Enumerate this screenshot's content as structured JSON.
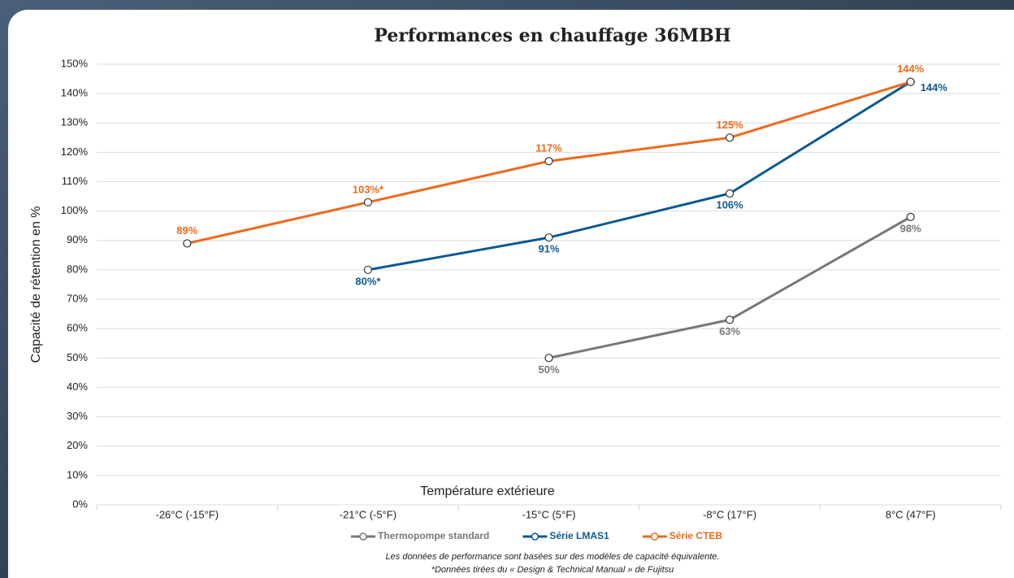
{
  "chart_data": {
    "type": "line",
    "title": "Performances en chauffage 36MBH",
    "x_label": "Température extérieure",
    "y_label": "Capacité de rétention en %",
    "categories": [
      "-26°C (-15°F)",
      "-21°C (-5°F)",
      "-15°C (5°F)",
      "-8°C (17°F)",
      "8°C (47°F)"
    ],
    "series": [
      {
        "name": "Thermopompe standard",
        "color": "#777777",
        "values": [
          null,
          null,
          50,
          63,
          98
        ],
        "value_labels": [
          null,
          null,
          "50%",
          "63%",
          "98%"
        ]
      },
      {
        "name": "Série LMAS1",
        "color": "#0b5a91",
        "values": [
          null,
          80,
          91,
          106,
          144
        ],
        "value_labels": [
          null,
          "80%*",
          "91%",
          "106%",
          "144%"
        ]
      },
      {
        "name": "Série CTEB",
        "color": "#ec6a1c",
        "values": [
          89,
          103,
          117,
          125,
          144
        ],
        "value_labels": [
          "89%",
          "103%*",
          "117%",
          "125%",
          "144%"
        ]
      }
    ],
    "ylim": [
      0,
      150
    ],
    "yticks": [
      {
        "value": 0,
        "label": "0%"
      },
      {
        "value": 10,
        "label": "10%"
      },
      {
        "value": 20,
        "label": "20%"
      },
      {
        "value": 30,
        "label": "30%"
      },
      {
        "value": 40,
        "label": "40%"
      },
      {
        "value": 50,
        "label": "50%"
      },
      {
        "value": 60,
        "label": "60%"
      },
      {
        "value": 70,
        "label": "70%"
      },
      {
        "value": 80,
        "label": "80%"
      },
      {
        "value": 90,
        "label": "90%"
      },
      {
        "value": 100,
        "label": "100%"
      },
      {
        "value": 110,
        "label": "110%"
      },
      {
        "value": 120,
        "label": "120%"
      },
      {
        "value": 130,
        "label": "130%"
      },
      {
        "value": 140,
        "label": "140%"
      },
      {
        "value": 150,
        "label": "150%"
      }
    ],
    "grid": true,
    "legend": "bottom",
    "notes": [
      "Les données de performance sont basées sur des modèles de capacité équivalente.",
      "*Données tirées du « Design & Technical Manual » de Fujitsu"
    ]
  }
}
